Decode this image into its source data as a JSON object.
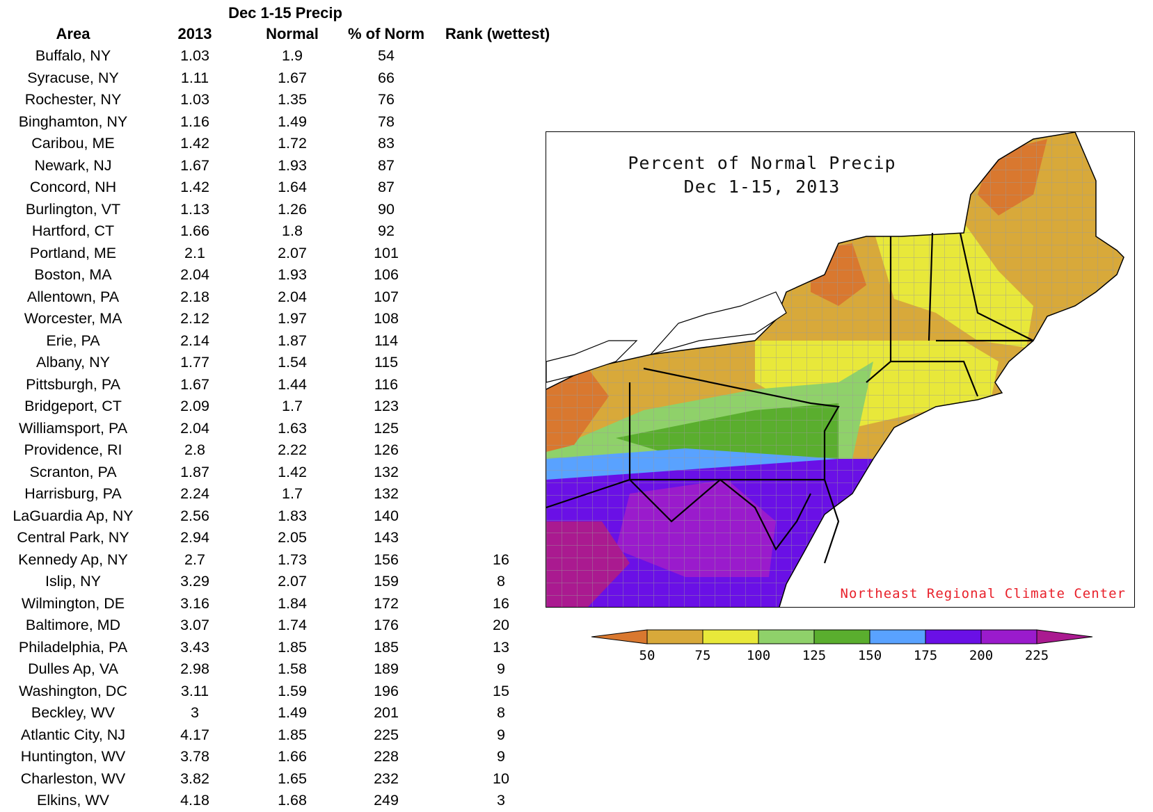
{
  "table": {
    "group_header": "Dec 1-15 Precip",
    "columns": [
      "Area",
      "2013",
      "Normal",
      "% of Norm",
      "Rank (wettest)"
    ],
    "rows": [
      {
        "area": "Buffalo, NY",
        "y2013": "1.03",
        "normal": "1.9",
        "pct": "54",
        "rank": ""
      },
      {
        "area": "Syracuse, NY",
        "y2013": "1.11",
        "normal": "1.67",
        "pct": "66",
        "rank": ""
      },
      {
        "area": "Rochester, NY",
        "y2013": "1.03",
        "normal": "1.35",
        "pct": "76",
        "rank": ""
      },
      {
        "area": "Binghamton, NY",
        "y2013": "1.16",
        "normal": "1.49",
        "pct": "78",
        "rank": ""
      },
      {
        "area": "Caribou, ME",
        "y2013": "1.42",
        "normal": "1.72",
        "pct": "83",
        "rank": ""
      },
      {
        "area": "Newark, NJ",
        "y2013": "1.67",
        "normal": "1.93",
        "pct": "87",
        "rank": ""
      },
      {
        "area": "Concord, NH",
        "y2013": "1.42",
        "normal": "1.64",
        "pct": "87",
        "rank": ""
      },
      {
        "area": "Burlington, VT",
        "y2013": "1.13",
        "normal": "1.26",
        "pct": "90",
        "rank": ""
      },
      {
        "area": "Hartford, CT",
        "y2013": "1.66",
        "normal": "1.8",
        "pct": "92",
        "rank": ""
      },
      {
        "area": "Portland, ME",
        "y2013": "2.1",
        "normal": "2.07",
        "pct": "101",
        "rank": ""
      },
      {
        "area": "Boston, MA",
        "y2013": "2.04",
        "normal": "1.93",
        "pct": "106",
        "rank": ""
      },
      {
        "area": "Allentown, PA",
        "y2013": "2.18",
        "normal": "2.04",
        "pct": "107",
        "rank": ""
      },
      {
        "area": "Worcester, MA",
        "y2013": "2.12",
        "normal": "1.97",
        "pct": "108",
        "rank": ""
      },
      {
        "area": "Erie, PA",
        "y2013": "2.14",
        "normal": "1.87",
        "pct": "114",
        "rank": ""
      },
      {
        "area": "Albany, NY",
        "y2013": "1.77",
        "normal": "1.54",
        "pct": "115",
        "rank": ""
      },
      {
        "area": "Pittsburgh, PA",
        "y2013": "1.67",
        "normal": "1.44",
        "pct": "116",
        "rank": ""
      },
      {
        "area": "Bridgeport, CT",
        "y2013": "2.09",
        "normal": "1.7",
        "pct": "123",
        "rank": ""
      },
      {
        "area": "Williamsport, PA",
        "y2013": "2.04",
        "normal": "1.63",
        "pct": "125",
        "rank": ""
      },
      {
        "area": "Providence, RI",
        "y2013": "2.8",
        "normal": "2.22",
        "pct": "126",
        "rank": ""
      },
      {
        "area": "Scranton, PA",
        "y2013": "1.87",
        "normal": "1.42",
        "pct": "132",
        "rank": ""
      },
      {
        "area": "Harrisburg, PA",
        "y2013": "2.24",
        "normal": "1.7",
        "pct": "132",
        "rank": ""
      },
      {
        "area": "LaGuardia Ap, NY",
        "y2013": "2.56",
        "normal": "1.83",
        "pct": "140",
        "rank": ""
      },
      {
        "area": "Central Park, NY",
        "y2013": "2.94",
        "normal": "2.05",
        "pct": "143",
        "rank": ""
      },
      {
        "area": "Kennedy Ap, NY",
        "y2013": "2.7",
        "normal": "1.73",
        "pct": "156",
        "rank": "16"
      },
      {
        "area": "Islip, NY",
        "y2013": "3.29",
        "normal": "2.07",
        "pct": "159",
        "rank": "8"
      },
      {
        "area": "Wilmington, DE",
        "y2013": "3.16",
        "normal": "1.84",
        "pct": "172",
        "rank": "16"
      },
      {
        "area": "Baltimore, MD",
        "y2013": "3.07",
        "normal": "1.74",
        "pct": "176",
        "rank": "20"
      },
      {
        "area": "Philadelphia, PA",
        "y2013": "3.43",
        "normal": "1.85",
        "pct": "185",
        "rank": "13"
      },
      {
        "area": "Dulles Ap, VA",
        "y2013": "2.98",
        "normal": "1.58",
        "pct": "189",
        "rank": "9"
      },
      {
        "area": "Washington, DC",
        "y2013": "3.11",
        "normal": "1.59",
        "pct": "196",
        "rank": "15"
      },
      {
        "area": "Beckley, WV",
        "y2013": "3",
        "normal": "1.49",
        "pct": "201",
        "rank": "8"
      },
      {
        "area": "Atlantic City, NJ",
        "y2013": "4.17",
        "normal": "1.85",
        "pct": "225",
        "rank": "9"
      },
      {
        "area": "Huntington, WV",
        "y2013": "3.78",
        "normal": "1.66",
        "pct": "228",
        "rank": "9"
      },
      {
        "area": "Charleston, WV",
        "y2013": "3.82",
        "normal": "1.65",
        "pct": "232",
        "rank": "10"
      },
      {
        "area": "Elkins, WV",
        "y2013": "4.18",
        "normal": "1.68",
        "pct": "249",
        "rank": "3"
      }
    ]
  },
  "map": {
    "title_line1": "Percent of Normal Precip",
    "title_line2": "Dec 1-15, 2013",
    "credit": "Northeast Regional Climate Center",
    "credit_color": "#e8202a",
    "colors": {
      "lt50": "#d9782f",
      "b50_75": "#d8a93a",
      "b75_100": "#e8e83a",
      "b100_125": "#8fd16a",
      "b125_150": "#5aae2e",
      "b150_175": "#59a2ff",
      "b175_200": "#6a10e6",
      "b200_225": "#9a1bcc",
      "gt225": "#aa1a90",
      "water": "#ffffff",
      "county_line": "#9a9a9a",
      "state_line": "#000000"
    }
  },
  "legend": {
    "labels": [
      "50",
      "75",
      "100",
      "125",
      "150",
      "175",
      "200",
      "225"
    ],
    "colors": [
      "#d9782f",
      "#d8a93a",
      "#e8e83a",
      "#8fd16a",
      "#5aae2e",
      "#59a2ff",
      "#6a10e6",
      "#9a1bcc",
      "#aa1a90"
    ]
  }
}
